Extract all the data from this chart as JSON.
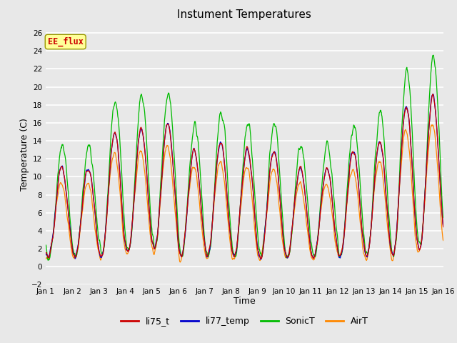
{
  "title": "Instument Temperatures",
  "xlabel": "Time",
  "ylabel": "Temperature (C)",
  "ylim": [
    -2,
    27
  ],
  "yticks": [
    -2,
    0,
    2,
    4,
    6,
    8,
    10,
    12,
    14,
    16,
    18,
    20,
    22,
    24,
    26
  ],
  "xtick_labels": [
    "Jan 1",
    "Jan 2",
    "Jan 3",
    "Jan 4",
    "Jan 5",
    "Jan 6",
    "Jan 7",
    "Jan 8",
    "Jan 9",
    "Jan 10",
    "Jan 11",
    "Jan 12",
    "Jan 13",
    "Jan 14",
    "Jan 15",
    "Jan 16"
  ],
  "colors": {
    "li75_t": "#cc0000",
    "li77_temp": "#0000cc",
    "SonicT": "#00bb00",
    "AirT": "#ff8800"
  },
  "annotation_text": "EE_flux",
  "annotation_color": "#cc0000",
  "annotation_bg": "#ffff99",
  "bg_color": "#e8e8e8",
  "plot_bg": "#e8e8e8",
  "grid_color": "#ffffff"
}
